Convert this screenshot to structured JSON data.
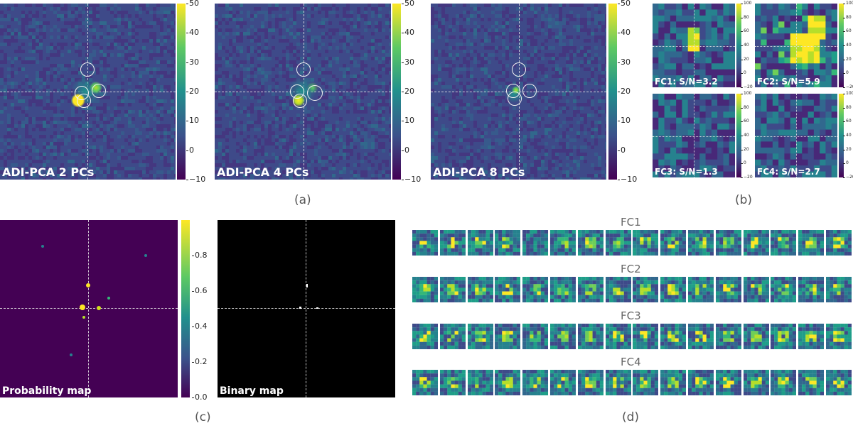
{
  "colormap": {
    "low": "#440154",
    "mid": "#21908d",
    "high": "#fde725"
  },
  "panel_a": {
    "caption": "(a)",
    "images": [
      {
        "label": "ADI-PCA 2 PCs",
        "colorbar_ticks": [
          "50",
          "40",
          "30",
          "20",
          "10",
          "0",
          "−10"
        ]
      },
      {
        "label": "ADI-PCA 4 PCs",
        "colorbar_ticks": [
          "50",
          "40",
          "30",
          "20",
          "10",
          "0",
          "−10"
        ]
      },
      {
        "label": "ADI-PCA 8 PCs",
        "colorbar_ticks": [
          "50",
          "40",
          "30",
          "20",
          "10",
          "0",
          "−10"
        ]
      }
    ]
  },
  "panel_b": {
    "caption": "(b)",
    "images": [
      {
        "label": "FC1: S/N=3.2"
      },
      {
        "label": "FC2: S/N=5.9"
      },
      {
        "label": "FC3: S/N=1.3"
      },
      {
        "label": "FC4: S/N=2.7"
      }
    ],
    "colorbar_ticks": [
      "100",
      "80",
      "60",
      "40",
      "20",
      "0",
      "−20"
    ]
  },
  "panel_c": {
    "caption": "(c)",
    "probability_label": "Probability map",
    "binary_label": "Binary map",
    "colorbar_ticks": [
      "0.8",
      "0.6",
      "0.4",
      "0.2",
      "0.0"
    ]
  },
  "panel_d": {
    "caption": "(d)",
    "rows": [
      {
        "title": "FC1"
      },
      {
        "title": "FC2"
      },
      {
        "title": "FC3"
      },
      {
        "title": "FC4"
      }
    ],
    "frames_per_row": 16
  }
}
